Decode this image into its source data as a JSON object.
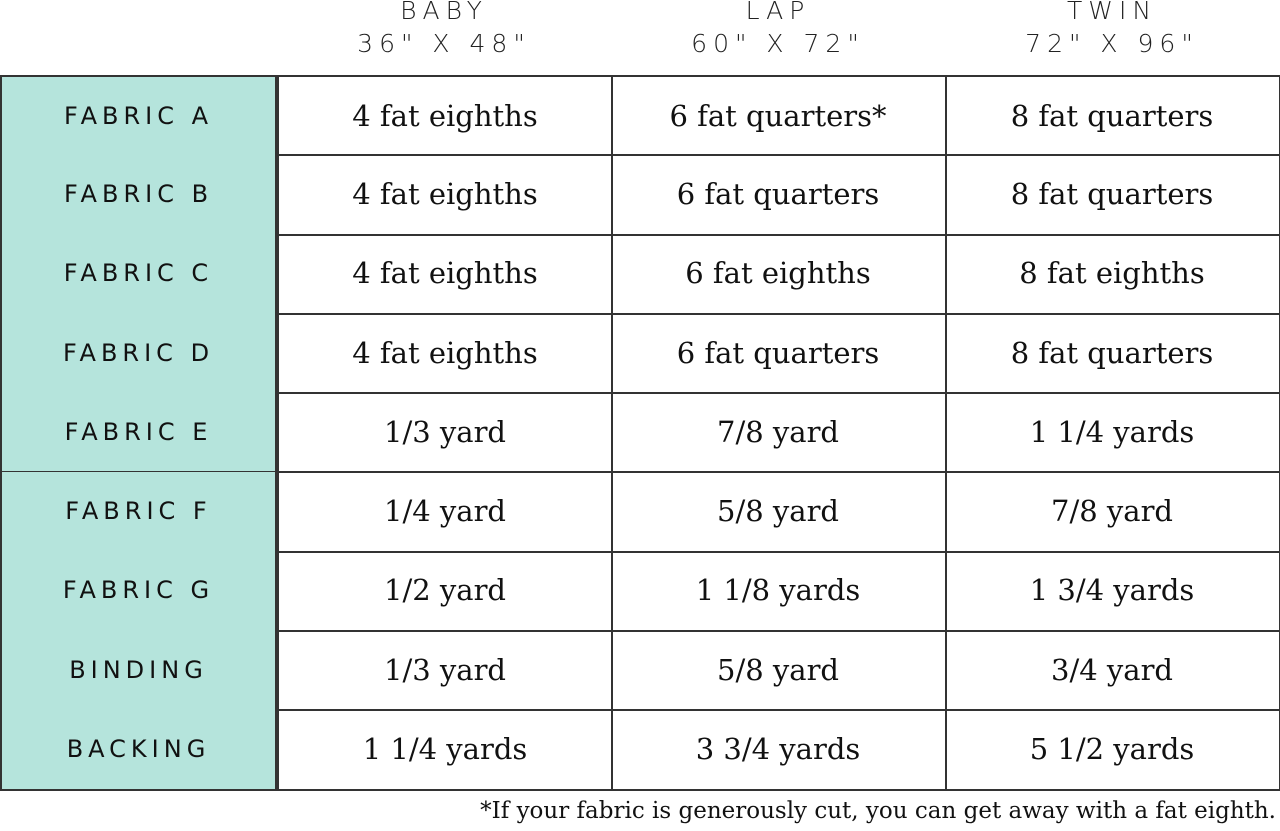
{
  "header": {
    "columns": [
      {
        "name": "BABY",
        "size": "36\" X 48\""
      },
      {
        "name": "LAP",
        "size": "60\" X 72\""
      },
      {
        "name": "TWIN",
        "size": "72\" X 96\""
      }
    ]
  },
  "table": {
    "rows": [
      [
        "FABRIC A",
        "4 fat eighths",
        "6 fat quarters*",
        "8 fat quarters"
      ],
      [
        "FABRIC B",
        "4 fat eighths",
        "6 fat quarters",
        "8 fat quarters"
      ],
      [
        "FABRIC C",
        "4 fat eighths",
        "6 fat eighths",
        "8 fat eighths"
      ],
      [
        "FABRIC D",
        "4 fat eighths",
        "6 fat quarters",
        "8 fat quarters"
      ],
      [
        "FABRIC E",
        "1/3 yard",
        "7/8 yard",
        "1 1/4 yards"
      ],
      [
        "FABRIC F",
        "1/4 yard",
        "5/8 yard",
        "7/8 yard"
      ],
      [
        "FABRIC G",
        "1/2 yard",
        "1 1/8 yards",
        "1 3/4 yards"
      ],
      [
        "BINDING",
        "1/3 yard",
        "5/8 yard",
        "3/4 yard"
      ],
      [
        "BACKING",
        "1 1/4 yards",
        "3 3/4 yards",
        "5 1/2 yards"
      ]
    ]
  },
  "footnote": "*If your fabric is generously cut, you can get away with a fat eighth."
}
